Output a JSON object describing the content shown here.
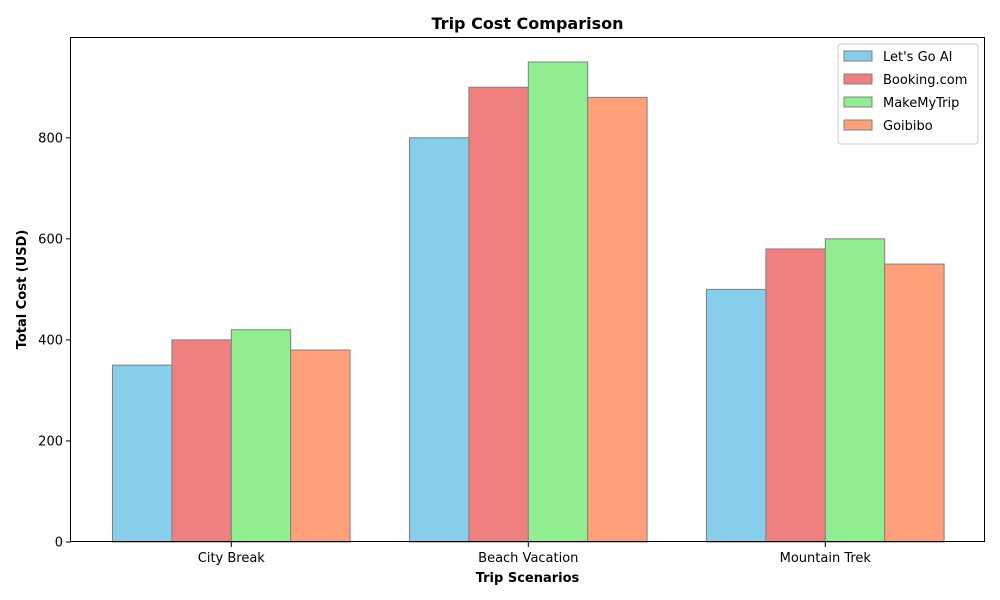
{
  "chart_data": {
    "type": "bar",
    "title": "Trip Cost Comparison",
    "xlabel": "Trip Scenarios",
    "ylabel": "Total Cost (USD)",
    "categories": [
      "City Break",
      "Beach Vacation",
      "Mountain Trek"
    ],
    "series": [
      {
        "name": "Let's Go AI",
        "color": "#87ceeb",
        "values": [
          350,
          800,
          500
        ]
      },
      {
        "name": "Booking.com",
        "color": "#f08080",
        "values": [
          400,
          900,
          580
        ]
      },
      {
        "name": "MakeMyTrip",
        "color": "#90ee90",
        "values": [
          420,
          950,
          600
        ]
      },
      {
        "name": "Goibibo",
        "color": "#ffa07a",
        "values": [
          380,
          880,
          550
        ]
      }
    ],
    "ylim": [
      0,
      997.5
    ],
    "yticks": [
      0,
      200,
      400,
      600,
      800
    ],
    "grid": false,
    "legend_position": "top-right",
    "bar_edge_color": "#808080"
  }
}
